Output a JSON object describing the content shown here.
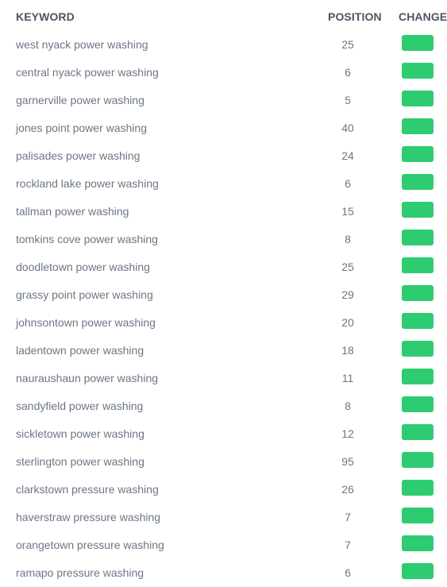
{
  "headers": {
    "keyword": "KEYWORD",
    "position": "POSITION",
    "change": "CHANGE"
  },
  "colors": {
    "change_badge": "#2ecc71",
    "header_text": "#4a5562",
    "row_text": "#6b7785"
  },
  "rows": [
    {
      "keyword": "west nyack power washing",
      "position": "25"
    },
    {
      "keyword": "central nyack power washing",
      "position": "6"
    },
    {
      "keyword": "garnerville power washing",
      "position": "5"
    },
    {
      "keyword": "jones point power washing",
      "position": "40"
    },
    {
      "keyword": "palisades power washing",
      "position": "24"
    },
    {
      "keyword": "rockland lake power washing",
      "position": "6"
    },
    {
      "keyword": "tallman power washing",
      "position": "15"
    },
    {
      "keyword": "tomkins cove power washing",
      "position": "8"
    },
    {
      "keyword": "doodletown power washing",
      "position": "25"
    },
    {
      "keyword": "grassy point power washing",
      "position": "29"
    },
    {
      "keyword": "johnsontown power washing",
      "position": "20"
    },
    {
      "keyword": "ladentown power washing",
      "position": "18"
    },
    {
      "keyword": "nauraushaun power washing",
      "position": "11"
    },
    {
      "keyword": "sandyfield power washing",
      "position": "8"
    },
    {
      "keyword": "sickletown power washing",
      "position": "12"
    },
    {
      "keyword": "sterlington power washing",
      "position": "95"
    },
    {
      "keyword": "clarkstown pressure washing",
      "position": "26"
    },
    {
      "keyword": "haverstraw pressure washing",
      "position": "7"
    },
    {
      "keyword": "orangetown pressure washing",
      "position": "7"
    },
    {
      "keyword": "ramapo pressure washing",
      "position": "6"
    }
  ]
}
